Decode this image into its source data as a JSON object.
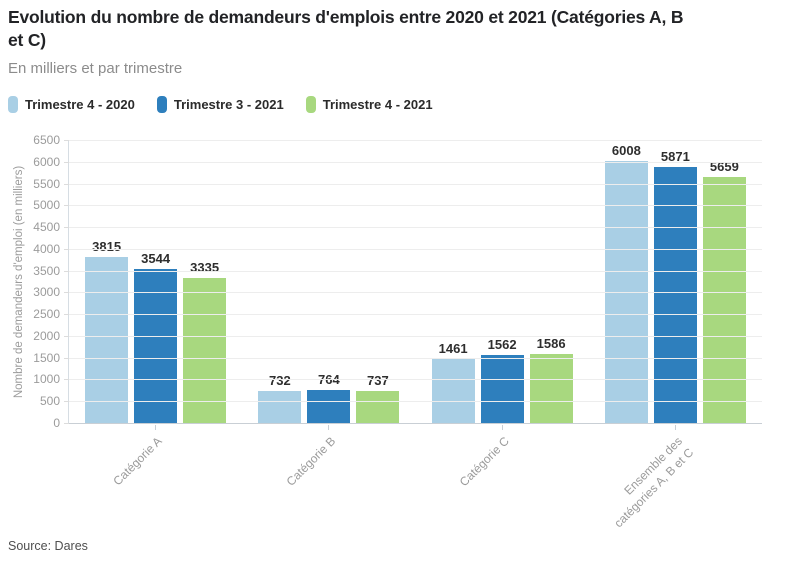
{
  "header": {
    "title": "Evolution du nombre de demandeurs d'emplois entre 2020 et 2021 (Catégories A, B et C)",
    "subtitle": "En milliers et par trimestre"
  },
  "legend": [
    {
      "label": "Trimestre 4 - 2020",
      "color": "#a9cfe5"
    },
    {
      "label": "Trimestre 3 - 2021",
      "color": "#2e7fbd"
    },
    {
      "label": "Trimestre 4 - 2021",
      "color": "#a8d87f"
    }
  ],
  "chart_data": {
    "type": "bar",
    "title": "Evolution du nombre de demandeurs d'emplois entre 2020 et 2021 (Catégories A, B et C)",
    "subtitle": "En milliers et par trimestre",
    "categories": [
      "Catégorie A",
      "Catégorie B",
      "Catégorie C",
      "Ensemble des catégories A, B et C"
    ],
    "categories_display": [
      "Catégorie A",
      "Catégorie B",
      "Catégorie C",
      "Ensemble des\ncatégories A, B et C"
    ],
    "series": [
      {
        "name": "Trimestre 4 - 2020",
        "color": "#a9cfe5",
        "values": [
          3815,
          732,
          1461,
          6008
        ]
      },
      {
        "name": "Trimestre 3 - 2021",
        "color": "#2e7fbd",
        "values": [
          3544,
          764,
          1562,
          5871
        ]
      },
      {
        "name": "Trimestre 4 - 2021",
        "color": "#a8d87f",
        "values": [
          3335,
          737,
          1586,
          5659
        ]
      }
    ],
    "xlabel": "",
    "ylabel": "Nombre de demandeurs d'emploi (en milliers)",
    "ylim": [
      0,
      6500
    ],
    "ytick_step": 500,
    "grid": true,
    "legend_position": "top",
    "value_labels": true
  },
  "footer": {
    "source": "Source: Dares"
  }
}
